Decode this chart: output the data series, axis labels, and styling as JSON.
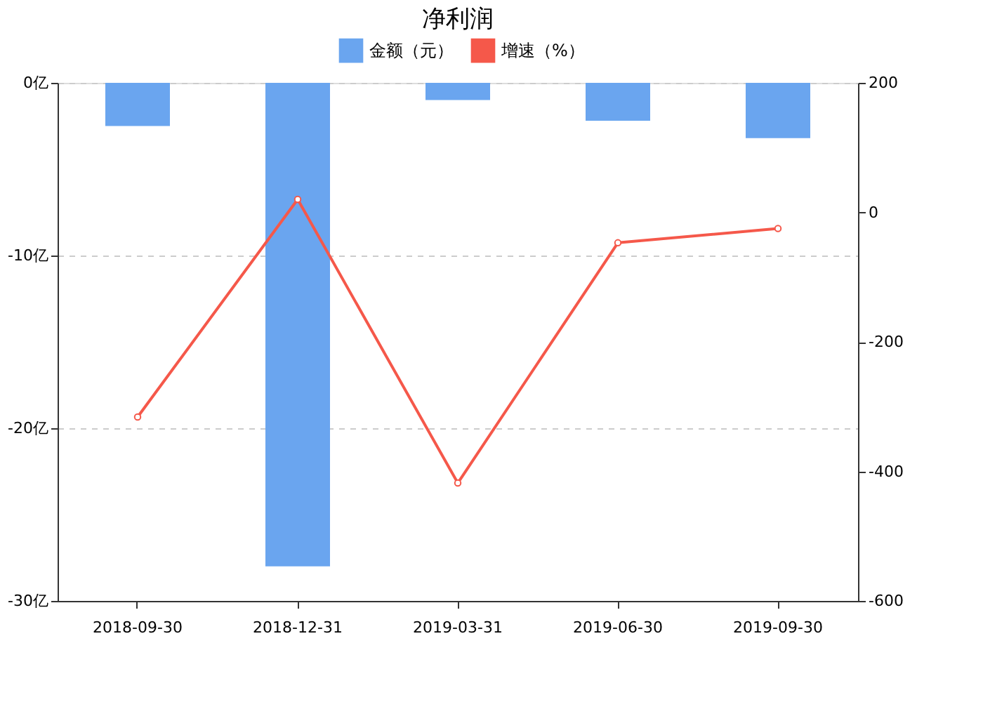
{
  "chart_data": {
    "type": "bar",
    "title": "净利润",
    "categories": [
      "2018-09-30",
      "2018-12-31",
      "2019-03-31",
      "2019-06-30",
      "2019-09-30"
    ],
    "series": [
      {
        "name": "金额（元）",
        "color": "#6aa5ef",
        "values": [
          -2.5,
          -28.0,
          -1.0,
          -2.2,
          -3.2
        ]
      },
      {
        "name": "增速（%）",
        "type": "line",
        "axis": "y2",
        "color": "#f5584a",
        "values": [
          -316,
          20,
          -418,
          -47,
          -25
        ],
        "marker": "circle"
      }
    ],
    "ylim": [
      -30,
      0
    ],
    "yticks": [
      {
        "value": 0,
        "label": "0亿"
      },
      {
        "value": -10,
        "label": "-10亿"
      },
      {
        "value": -20,
        "label": "-20亿"
      },
      {
        "value": -30,
        "label": "-30亿"
      }
    ],
    "y2lim": [
      -600,
      200
    ],
    "y2ticks": [
      200,
      0,
      -200,
      -400,
      -600
    ],
    "grid": "y",
    "legend": "top"
  }
}
